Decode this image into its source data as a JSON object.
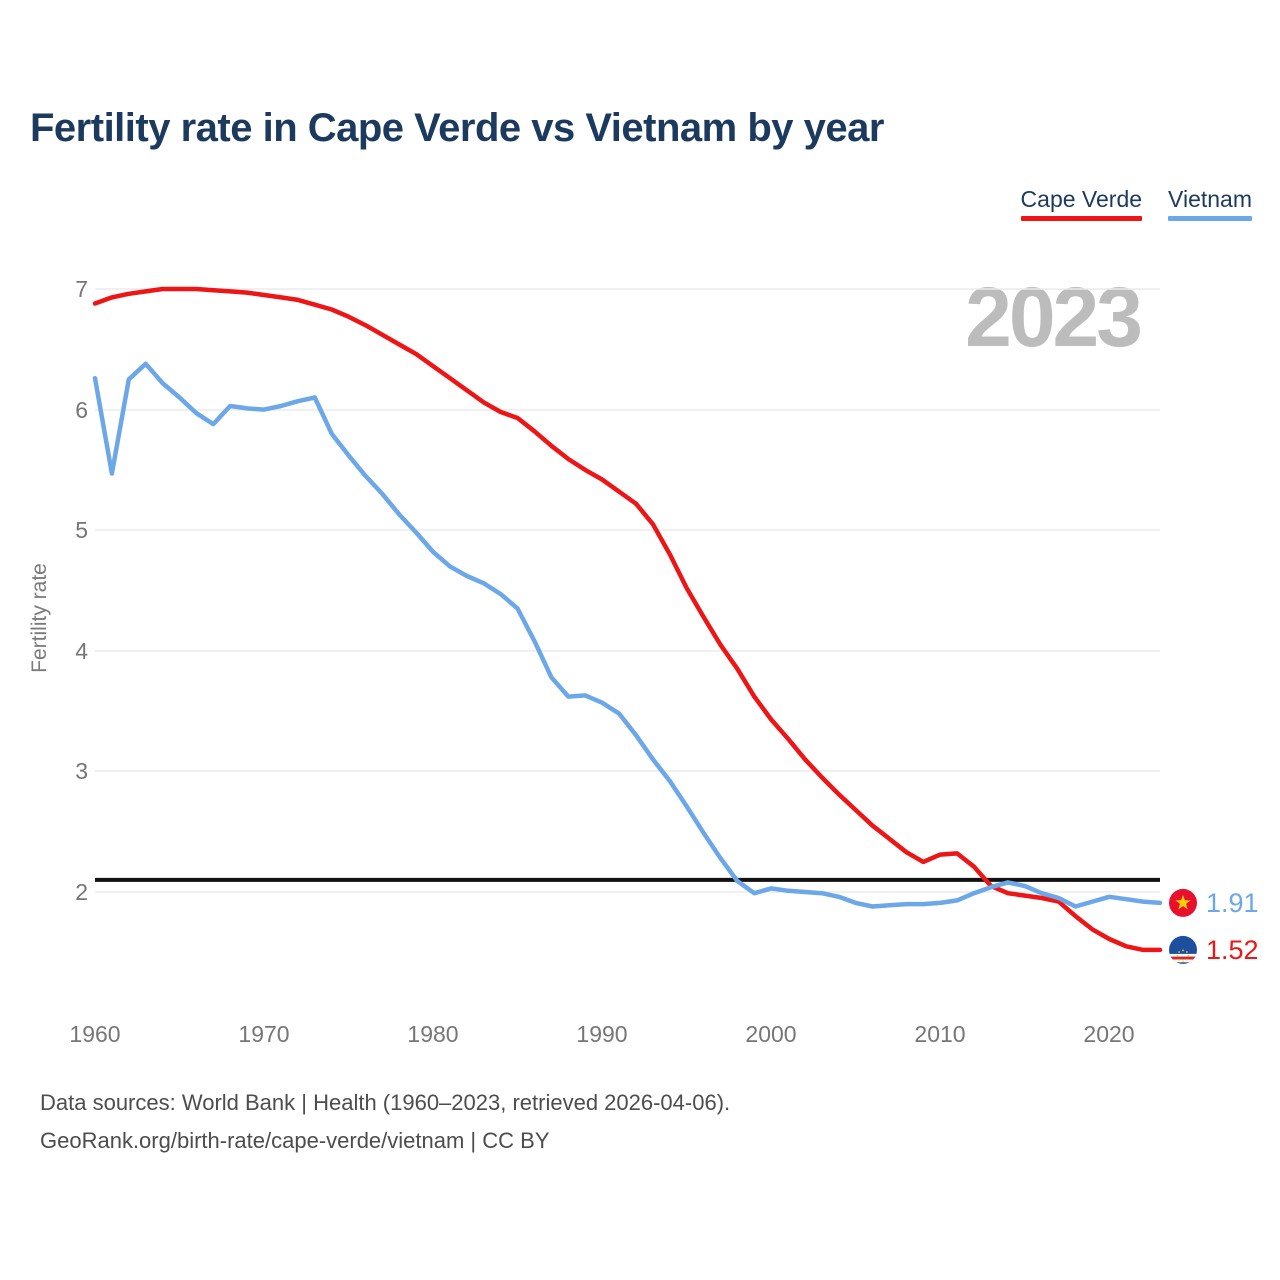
{
  "page": {
    "title": "Fertility rate in Cape Verde vs Vietnam by year",
    "watermark_year": "2023",
    "footer_line1": "Data sources: World Bank | Health (1960–2023, retrieved 2026-04-06).",
    "footer_line2": "GeoRank.org/birth-rate/cape-verde/vietnam | CC BY"
  },
  "legend": {
    "items": [
      {
        "label": "Cape Verde",
        "color": "#ed1515"
      },
      {
        "label": "Vietnam",
        "color": "#6ca7e8"
      }
    ]
  },
  "chart_data": {
    "type": "line",
    "title": "Fertility rate in Cape Verde vs Vietnam by year",
    "xlabel": "",
    "ylabel": "Fertility rate",
    "grid": true,
    "legend_position": "top-right",
    "xlim": [
      1960,
      2023
    ],
    "ylim": [
      1.4,
      7.1
    ],
    "x_ticks": [
      1960,
      1970,
      1980,
      1990,
      2000,
      2010,
      2020
    ],
    "y_ticks": [
      7,
      6,
      5,
      4,
      3,
      2
    ],
    "reference_line": {
      "value": 2.1,
      "color": "#111111"
    },
    "x": [
      1960,
      1961,
      1962,
      1963,
      1964,
      1965,
      1966,
      1967,
      1968,
      1969,
      1970,
      1971,
      1972,
      1973,
      1974,
      1975,
      1976,
      1977,
      1978,
      1979,
      1980,
      1981,
      1982,
      1983,
      1984,
      1985,
      1986,
      1987,
      1988,
      1989,
      1990,
      1991,
      1992,
      1993,
      1994,
      1995,
      1996,
      1997,
      1998,
      1999,
      2000,
      2001,
      2002,
      2003,
      2004,
      2005,
      2006,
      2007,
      2008,
      2009,
      2010,
      2011,
      2012,
      2013,
      2014,
      2015,
      2016,
      2017,
      2018,
      2019,
      2020,
      2021,
      2022,
      2023
    ],
    "series": [
      {
        "name": "Cape Verde",
        "color": "#ed1515",
        "end_label": "1.52",
        "flag": {
          "bg": "#1d4f9e",
          "stripe_white": "#ffffff",
          "stripe_red": "#d7282f",
          "star": "#ffd100"
        },
        "values": [
          6.88,
          6.93,
          6.96,
          6.98,
          7.0,
          7.0,
          7.0,
          6.99,
          6.98,
          6.97,
          6.95,
          6.93,
          6.91,
          6.87,
          6.83,
          6.77,
          6.7,
          6.62,
          6.54,
          6.46,
          6.36,
          6.26,
          6.16,
          6.06,
          5.98,
          5.93,
          5.82,
          5.7,
          5.59,
          5.5,
          5.42,
          5.32,
          5.22,
          5.05,
          4.8,
          4.52,
          4.28,
          4.05,
          3.85,
          3.62,
          3.43,
          3.27,
          3.1,
          2.95,
          2.81,
          2.68,
          2.55,
          2.44,
          2.33,
          2.25,
          2.31,
          2.32,
          2.21,
          2.05,
          1.99,
          1.97,
          1.95,
          1.92,
          1.8,
          1.69,
          1.61,
          1.55,
          1.52,
          1.52
        ]
      },
      {
        "name": "Vietnam",
        "color": "#6ca7e8",
        "end_label": "1.91",
        "flag": {
          "bg": "#e8112d",
          "star": "#ffd100"
        },
        "values": [
          6.26,
          5.47,
          6.25,
          6.38,
          6.22,
          6.1,
          5.97,
          5.88,
          6.03,
          6.01,
          6.0,
          6.03,
          6.07,
          6.1,
          5.8,
          5.62,
          5.45,
          5.3,
          5.13,
          4.98,
          4.82,
          4.7,
          4.62,
          4.56,
          4.47,
          4.35,
          4.08,
          3.78,
          3.62,
          3.63,
          3.57,
          3.48,
          3.3,
          3.1,
          2.92,
          2.71,
          2.49,
          2.28,
          2.09,
          1.99,
          2.03,
          2.01,
          2.0,
          1.99,
          1.96,
          1.91,
          1.88,
          1.89,
          1.9,
          1.9,
          1.91,
          1.93,
          1.99,
          2.04,
          2.08,
          2.05,
          1.99,
          1.95,
          1.88,
          1.92,
          1.96,
          1.94,
          1.92,
          1.91
        ]
      }
    ]
  }
}
